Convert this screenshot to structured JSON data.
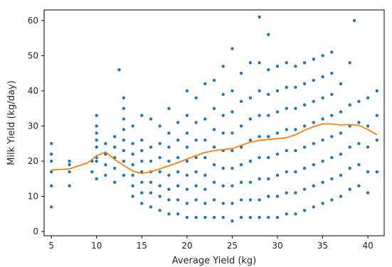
{
  "chart_data": {
    "type": "scatter",
    "title": "",
    "xlabel": "Average Yield (kg)",
    "ylabel": "Milk Yield (kg/day)",
    "xlim": [
      4.2,
      41.8
    ],
    "ylim": [
      -1.2,
      63
    ],
    "xticks": [
      5,
      10,
      15,
      20,
      25,
      30,
      35,
      40
    ],
    "yticks": [
      0,
      10,
      20,
      30,
      40,
      50,
      60
    ],
    "grid": false,
    "legend": "none",
    "colors": {
      "scatter": "#1f77b4",
      "trend": "#ff7f0e",
      "axis": "#000000"
    },
    "series": [
      {
        "type": "scatter",
        "x": [
          5,
          5,
          5,
          5,
          5,
          5,
          7,
          7,
          7,
          7,
          9.5,
          9.5,
          10,
          10,
          10,
          10,
          10,
          10,
          10,
          10,
          11,
          11,
          11,
          11,
          12,
          12,
          12,
          12,
          12,
          12.5,
          13,
          13,
          13,
          13,
          13,
          13,
          13,
          13,
          14,
          14,
          14,
          14,
          14,
          14,
          14,
          15,
          15,
          15,
          15,
          15,
          15,
          15,
          15,
          16,
          16,
          16,
          16,
          16,
          16,
          16,
          17,
          17,
          17,
          17,
          17,
          17,
          17,
          18,
          18,
          18,
          18,
          18,
          18,
          18,
          18,
          19,
          19,
          19,
          19,
          19,
          19,
          19,
          20,
          20,
          20,
          20,
          20,
          20,
          20,
          20,
          20,
          21,
          21,
          21,
          21,
          21,
          21,
          21,
          21,
          22,
          22,
          22,
          22,
          22,
          22,
          22,
          22,
          23,
          23,
          23,
          23,
          23,
          23,
          23,
          23,
          24,
          24,
          24,
          24,
          24,
          24,
          24,
          24,
          24,
          25,
          25,
          25,
          25,
          25,
          25,
          25,
          25,
          25,
          26,
          26,
          26,
          26,
          26,
          26,
          26,
          26,
          27,
          27,
          27,
          27,
          27,
          27,
          27,
          27,
          28,
          28,
          28,
          28,
          28,
          28,
          28,
          28,
          28,
          29,
          29,
          29,
          29,
          29,
          29,
          29,
          29,
          29,
          30,
          30,
          30,
          30,
          30,
          30,
          30,
          30,
          31,
          31,
          31,
          31,
          31,
          31,
          31,
          31,
          32,
          32,
          32,
          32,
          32,
          32,
          32,
          32,
          33,
          33,
          33,
          33,
          33,
          33,
          33,
          33,
          34,
          34,
          34,
          34,
          34,
          34,
          34,
          34,
          35,
          35,
          35,
          35,
          35,
          35,
          35,
          35,
          36,
          36,
          36,
          36,
          36,
          36,
          36,
          36,
          37,
          37,
          37,
          37,
          37,
          37,
          38,
          38,
          38,
          38,
          38,
          38,
          38.5,
          39,
          39,
          39,
          39,
          39,
          40,
          40,
          40,
          40,
          40,
          41,
          41,
          41,
          41
        ],
        "y": [
          7,
          13,
          17,
          20,
          22,
          25,
          13,
          17,
          19,
          20,
          17,
          20,
          15,
          20,
          24,
          28,
          30,
          33,
          21,
          26,
          16,
          19,
          22,
          25,
          14,
          18,
          21,
          24,
          27,
          46,
          16,
          20,
          23,
          26,
          29,
          32,
          35,
          38,
          10,
          13,
          16,
          19,
          22,
          25,
          30,
          8,
          11,
          14,
          17,
          20,
          23,
          26,
          33,
          7,
          11,
          14,
          17,
          20,
          24,
          32,
          6,
          10,
          13,
          17,
          21,
          25,
          30,
          5,
          9,
          12,
          16,
          20,
          24,
          28,
          35,
          5,
          9,
          13,
          17,
          21,
          26,
          31,
          4,
          8,
          12,
          16,
          20,
          24,
          28,
          33,
          40,
          4,
          9,
          13,
          17,
          21,
          26,
          31,
          38,
          4,
          8,
          12,
          16,
          21,
          26,
          32,
          42,
          4,
          9,
          14,
          19,
          24,
          29,
          35,
          43,
          4,
          8,
          13,
          18,
          23,
          28,
          33,
          39,
          47,
          3,
          8,
          13,
          18,
          23,
          28,
          34,
          40,
          52,
          4,
          9,
          14,
          19,
          24,
          30,
          37,
          45,
          4,
          9,
          14,
          20,
          26,
          32,
          38,
          48,
          4,
          9,
          15,
          21,
          27,
          33,
          40,
          48,
          61,
          4,
          10,
          15,
          21,
          27,
          33,
          39,
          46,
          56,
          4,
          10,
          16,
          22,
          28,
          34,
          40,
          47,
          5,
          11,
          17,
          23,
          29,
          35,
          41,
          48,
          5,
          11,
          17,
          23,
          29,
          35,
          41,
          47,
          6,
          12,
          18,
          24,
          30,
          36,
          42,
          48,
          7,
          13,
          19,
          25,
          31,
          37,
          43,
          49,
          8,
          14,
          20,
          26,
          32,
          38,
          44,
          50,
          9,
          15,
          21,
          27,
          33,
          39,
          45,
          51,
          10,
          16,
          22,
          28,
          34,
          42,
          12,
          18,
          24,
          30,
          36,
          48,
          60,
          13,
          19,
          25,
          31,
          37,
          11,
          17,
          24,
          30,
          38,
          17,
          26,
          33,
          40
        ]
      },
      {
        "type": "line",
        "name": "",
        "x": [
          5,
          7,
          9,
          10,
          11,
          12,
          13,
          14,
          15,
          16,
          17,
          18,
          19,
          20,
          21,
          22,
          23,
          24,
          25,
          26,
          27,
          28,
          29,
          30,
          31,
          32,
          33,
          34,
          35,
          36,
          37,
          38,
          39,
          40,
          41
        ],
        "y": [
          17.5,
          17.8,
          19.5,
          21.5,
          22.6,
          20.5,
          18.8,
          17.2,
          16.5,
          17,
          17.8,
          18.7,
          19.6,
          20.6,
          21.6,
          22.5,
          23,
          23.3,
          23.6,
          24.5,
          25.4,
          25.9,
          26.2,
          26.4,
          26.7,
          27.5,
          28.8,
          29.8,
          30.6,
          30.6,
          30.3,
          30.4,
          30.2,
          29,
          27.5
        ]
      }
    ]
  }
}
